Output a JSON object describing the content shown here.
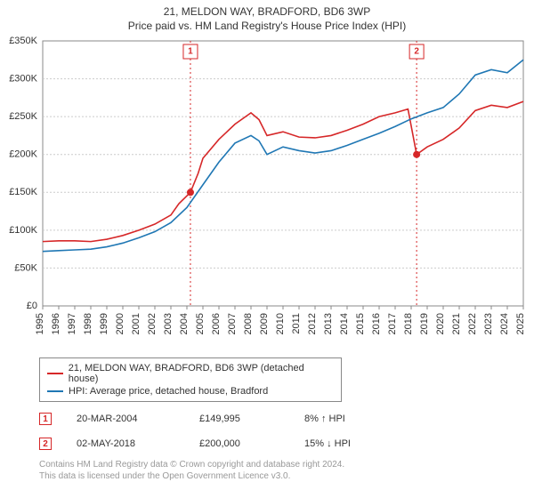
{
  "titles": {
    "main": "21, MELDON WAY, BRADFORD, BD6 3WP",
    "sub": "Price paid vs. HM Land Registry's House Price Index (HPI)"
  },
  "chart": {
    "type": "line",
    "background_color": "#ffffff",
    "grid_color": "#cccccc",
    "axis_color": "#888888",
    "label_fontsize": 11,
    "x": {
      "min": 1995,
      "max": 2025,
      "ticks": [
        1995,
        1996,
        1997,
        1998,
        1999,
        2000,
        2001,
        2002,
        2003,
        2004,
        2005,
        2006,
        2007,
        2008,
        2009,
        2010,
        2011,
        2012,
        2013,
        2014,
        2015,
        2016,
        2017,
        2018,
        2019,
        2020,
        2021,
        2022,
        2023,
        2024,
        2025
      ]
    },
    "y": {
      "min": 0,
      "max": 350000,
      "ticks": [
        0,
        50000,
        100000,
        150000,
        200000,
        250000,
        300000,
        350000
      ],
      "labels": [
        "£0",
        "£50K",
        "£100K",
        "£150K",
        "£200K",
        "£250K",
        "£300K",
        "£350K"
      ]
    },
    "series": [
      {
        "id": "price_paid",
        "label": "21, MELDON WAY, BRADFORD, BD6 3WP (detached house)",
        "color": "#d62728",
        "points": [
          [
            1995,
            85000
          ],
          [
            1996,
            86000
          ],
          [
            1997,
            86000
          ],
          [
            1998,
            85000
          ],
          [
            1999,
            88000
          ],
          [
            2000,
            93000
          ],
          [
            2001,
            100000
          ],
          [
            2002,
            108000
          ],
          [
            2003,
            120000
          ],
          [
            2003.5,
            135000
          ],
          [
            2004.22,
            149995
          ],
          [
            2004.7,
            175000
          ],
          [
            2005,
            195000
          ],
          [
            2006,
            220000
          ],
          [
            2007,
            240000
          ],
          [
            2008,
            255000
          ],
          [
            2008.5,
            246000
          ],
          [
            2009,
            225000
          ],
          [
            2010,
            230000
          ],
          [
            2011,
            223000
          ],
          [
            2012,
            222000
          ],
          [
            2013,
            225000
          ],
          [
            2014,
            232000
          ],
          [
            2015,
            240000
          ],
          [
            2016,
            250000
          ],
          [
            2017,
            255000
          ],
          [
            2017.8,
            260000
          ],
          [
            2018.34,
            200000
          ],
          [
            2019,
            210000
          ],
          [
            2020,
            220000
          ],
          [
            2021,
            235000
          ],
          [
            2022,
            258000
          ],
          [
            2023,
            265000
          ],
          [
            2024,
            262000
          ],
          [
            2025,
            270000
          ]
        ]
      },
      {
        "id": "hpi",
        "label": "HPI: Average price, detached house, Bradford",
        "color": "#1f77b4",
        "points": [
          [
            1995,
            72000
          ],
          [
            1996,
            73000
          ],
          [
            1997,
            74000
          ],
          [
            1998,
            75000
          ],
          [
            1999,
            78000
          ],
          [
            2000,
            83000
          ],
          [
            2001,
            90000
          ],
          [
            2002,
            98000
          ],
          [
            2003,
            110000
          ],
          [
            2004,
            130000
          ],
          [
            2005,
            160000
          ],
          [
            2006,
            190000
          ],
          [
            2007,
            215000
          ],
          [
            2008,
            225000
          ],
          [
            2008.5,
            218000
          ],
          [
            2009,
            200000
          ],
          [
            2010,
            210000
          ],
          [
            2011,
            205000
          ],
          [
            2012,
            202000
          ],
          [
            2013,
            205000
          ],
          [
            2014,
            212000
          ],
          [
            2015,
            220000
          ],
          [
            2016,
            228000
          ],
          [
            2017,
            237000
          ],
          [
            2018,
            247000
          ],
          [
            2019,
            255000
          ],
          [
            2020,
            262000
          ],
          [
            2021,
            280000
          ],
          [
            2022,
            305000
          ],
          [
            2023,
            312000
          ],
          [
            2024,
            308000
          ],
          [
            2025,
            325000
          ]
        ]
      }
    ],
    "events": [
      {
        "num": "1",
        "year": 2004.22,
        "value": 149995,
        "date_label": "20-MAR-2004",
        "price_label": "£149,995",
        "diff_label": "8% ↑ HPI",
        "color": "#d62728"
      },
      {
        "num": "2",
        "year": 2018.34,
        "value": 200000,
        "date_label": "02-MAY-2018",
        "price_label": "£200,000",
        "diff_label": "15% ↓ HPI",
        "color": "#d62728"
      }
    ]
  },
  "legend": {
    "border_color": "#888888"
  },
  "footnote": {
    "line1": "Contains HM Land Registry data © Crown copyright and database right 2024.",
    "line2": "This data is licensed under the Open Government Licence v3.0."
  }
}
